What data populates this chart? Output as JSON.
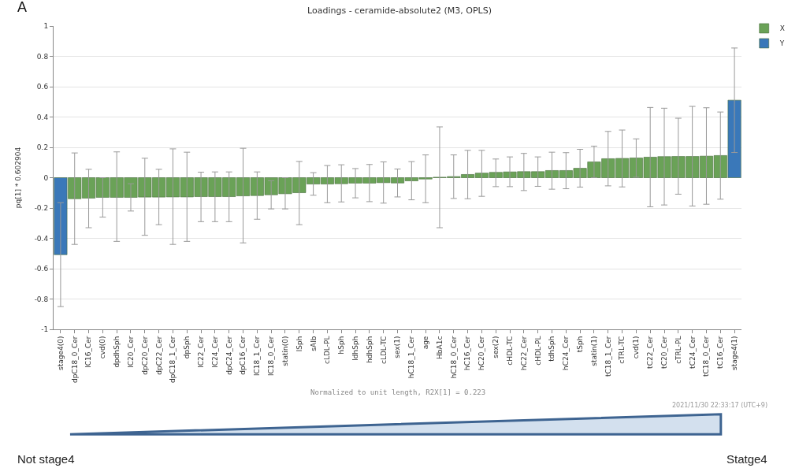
{
  "chart_data": {
    "type": "bar",
    "title": "Loadings - ceramide-absolute2 (M3, OPLS)",
    "ylabel": "pq[1] * 0.602904",
    "categories": [
      "stage4(0)",
      "dpC18_0_Cer",
      "lC16_Cer",
      "cvd(0)",
      "dpdhSph",
      "lC20_Cer",
      "dpC20_Cer",
      "dpC22_Cer",
      "dpC18_1_Cer",
      "dpSph",
      "lC22_Cer",
      "lC24_Cer",
      "dpC24_Cer",
      "dpC16_Cer",
      "lC18_1_Cer",
      "lC18_0_Cer",
      "statin(0)",
      "lSph",
      "sAlb",
      "cLDL-PL",
      "hSph",
      "ldhSph",
      "hdhSph",
      "cLDL-TC",
      "sex(1)",
      "hC18_1_Cer",
      "age",
      "HbA1c",
      "hC18_0_Cer",
      "hC16_Cer",
      "hC20_Cer",
      "sex(2)",
      "cHDL-TC",
      "hC22_Cer",
      "cHDL-PL",
      "tdhSph",
      "hC24_Cer",
      "tSph",
      "statin(1)",
      "tC18_1_Cer",
      "cTRL-TC",
      "cvd(1)",
      "tC22_Cer",
      "tC20_Cer",
      "cTRL-PL",
      "tC24_Cer",
      "tC18_0_Cer",
      "tC16_Cer",
      "stage4(1)"
    ],
    "series": [
      {
        "name": "X",
        "color": "#6aa257",
        "values": [
          null,
          -0.139,
          -0.135,
          -0.13,
          -0.13,
          -0.13,
          -0.128,
          -0.128,
          -0.127,
          -0.127,
          -0.125,
          -0.125,
          -0.125,
          -0.12,
          -0.118,
          -0.113,
          -0.106,
          -0.099,
          -0.042,
          -0.042,
          -0.04,
          -0.036,
          -0.036,
          -0.033,
          -0.035,
          -0.021,
          -0.009,
          0.003,
          0.007,
          0.021,
          0.03,
          0.035,
          0.038,
          0.04,
          0.04,
          0.047,
          0.047,
          0.062,
          0.104,
          0.125,
          0.127,
          0.13,
          0.135,
          0.139,
          0.14,
          0.14,
          0.142,
          0.146,
          null
        ],
        "errors": [
          null,
          [
            -0.44,
            0.163
          ],
          [
            -0.33,
            0.055
          ],
          [
            -0.26,
            0.0
          ],
          [
            -0.42,
            0.17
          ],
          [
            -0.22,
            -0.04
          ],
          [
            -0.38,
            0.128
          ],
          [
            -0.31,
            0.055
          ],
          [
            -0.44,
            0.19
          ],
          [
            -0.42,
            0.168
          ],
          [
            -0.29,
            0.036
          ],
          [
            -0.29,
            0.038
          ],
          [
            -0.29,
            0.038
          ],
          [
            -0.43,
            0.194
          ],
          [
            -0.274,
            0.038
          ],
          [
            -0.206,
            -0.02
          ],
          [
            -0.206,
            0.0
          ],
          [
            -0.31,
            0.107
          ],
          [
            -0.116,
            0.033
          ],
          [
            -0.165,
            0.08
          ],
          [
            -0.16,
            0.085
          ],
          [
            -0.133,
            0.06
          ],
          [
            -0.158,
            0.087
          ],
          [
            -0.168,
            0.104
          ],
          [
            -0.127,
            0.057
          ],
          [
            -0.146,
            0.106
          ],
          [
            -0.165,
            0.15
          ],
          [
            -0.33,
            0.335
          ],
          [
            -0.137,
            0.15
          ],
          [
            -0.139,
            0.18
          ],
          [
            -0.123,
            0.18
          ],
          [
            -0.059,
            0.123
          ],
          [
            -0.059,
            0.137
          ],
          [
            -0.085,
            0.16
          ],
          [
            -0.057,
            0.137
          ],
          [
            -0.076,
            0.168
          ],
          [
            -0.073,
            0.165
          ],
          [
            -0.062,
            0.187
          ],
          [
            0.0,
            0.208
          ],
          [
            -0.054,
            0.305
          ],
          [
            -0.061,
            0.314
          ],
          [
            0.003,
            0.256
          ],
          [
            -0.192,
            0.463
          ],
          [
            -0.18,
            0.458
          ],
          [
            -0.109,
            0.392
          ],
          [
            -0.187,
            0.47
          ],
          [
            -0.175,
            0.461
          ],
          [
            -0.142,
            0.433
          ],
          null
        ]
      },
      {
        "name": "Y",
        "color": "#3a78b9",
        "values": [
          -0.508,
          null,
          null,
          null,
          null,
          null,
          null,
          null,
          null,
          null,
          null,
          null,
          null,
          null,
          null,
          null,
          null,
          null,
          null,
          null,
          null,
          null,
          null,
          null,
          null,
          null,
          null,
          null,
          null,
          null,
          null,
          null,
          null,
          null,
          null,
          null,
          null,
          null,
          null,
          null,
          null,
          null,
          null,
          null,
          null,
          null,
          null,
          null,
          0.511
        ],
        "errors": [
          [
            -0.85,
            -0.165
          ],
          null,
          null,
          null,
          null,
          null,
          null,
          null,
          null,
          null,
          null,
          null,
          null,
          null,
          null,
          null,
          null,
          null,
          null,
          null,
          null,
          null,
          null,
          null,
          null,
          null,
          null,
          null,
          null,
          null,
          null,
          null,
          null,
          null,
          null,
          null,
          null,
          null,
          null,
          null,
          null,
          null,
          null,
          null,
          null,
          null,
          null,
          null,
          [
            0.166,
            0.855
          ]
        ]
      }
    ],
    "ylim": [
      -1,
      1
    ],
    "yticks": [
      -1,
      -0.8,
      -0.6,
      -0.4,
      -0.2,
      0,
      0.2,
      0.4,
      0.6,
      0.8,
      1
    ],
    "grid": "y",
    "legend": "top right",
    "annotations": [
      "A",
      "Normalized to unit length, R2X[1] = 0.223",
      "2021/11/30 22:33:17 (UTC+9)",
      "Not stage4",
      "Statge4"
    ]
  }
}
